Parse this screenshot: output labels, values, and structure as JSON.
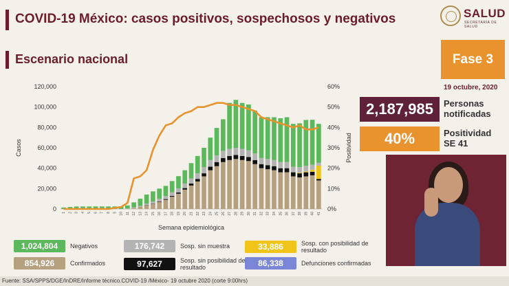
{
  "header": {
    "title": "COVID-19 México: casos positivos, sospechosos y negativos",
    "subtitle": "Escenario nacional"
  },
  "logo": {
    "word": "SALUD",
    "sub": "SECRETARÍA DE SALUD"
  },
  "fase": "Fase 3",
  "date": "19 octubre, 2020",
  "stats": {
    "notificadas_value": "2,187,985",
    "notificadas_label1": "Personas",
    "notificadas_label2": "notificadas",
    "positividad_value": "40%",
    "positividad_label1": "Positividad",
    "positividad_label2": "SE 41"
  },
  "legend": [
    {
      "value": "1,024,804",
      "label": "Negativos",
      "color": "#5cb85c"
    },
    {
      "value": "176,742",
      "label": "Sosp. sin muestra",
      "color": "#b3b3b3"
    },
    {
      "value": "33,886",
      "label": "Sosp. con posibilidad de resultado",
      "color": "#f0c419"
    },
    {
      "value": "854,926",
      "label": "Confirmados",
      "color": "#b5a080"
    },
    {
      "value": "97,627",
      "label": "Sosp. sin posibilidad de resultado",
      "color": "#111111"
    },
    {
      "value": "86,338",
      "label": "Defunciones confirmadas",
      "color": "#7b86d6"
    }
  ],
  "footer": "Fuente: SSA/SPPS/DGE/InDRE/Informe técnico.COVID-19 /México- 19 octubre 2020 (corte 9:00hrs)",
  "chart_data": {
    "type": "bar",
    "xlabel": "Semana epidemiológica",
    "ylabel": "Casos",
    "y2label": "Positividad",
    "ylim": [
      0,
      120000
    ],
    "y2lim": [
      0,
      60
    ],
    "yticks": [
      "0",
      "20,000",
      "40,000",
      "60,000",
      "80,000",
      "100,000",
      "120,000"
    ],
    "y2ticks": [
      "0%",
      "10%",
      "20%",
      "30%",
      "40%",
      "50%",
      "60%"
    ],
    "categories": [
      "1",
      "2",
      "3",
      "4",
      "5",
      "6",
      "7",
      "8",
      "9",
      "10",
      "11",
      "12",
      "13",
      "14",
      "15",
      "16",
      "17",
      "18",
      "19",
      "20",
      "21",
      "22",
      "23",
      "24",
      "25",
      "26",
      "27",
      "28",
      "29",
      "30",
      "31",
      "32",
      "33",
      "34",
      "35",
      "36",
      "37",
      "38",
      "39",
      "40",
      "41"
    ],
    "series": [
      {
        "name": "Confirmados",
        "color": "#b5a080",
        "values": [
          0,
          0,
          0,
          0,
          0,
          0,
          0,
          0,
          0,
          0,
          200,
          800,
          2000,
          3500,
          5000,
          7000,
          9000,
          12000,
          15000,
          19000,
          23000,
          27000,
          32000,
          38000,
          42000,
          46000,
          48000,
          49000,
          48000,
          47000,
          44000,
          40000,
          39000,
          38000,
          36000,
          36000,
          32000,
          31000,
          32000,
          33000,
          28000
        ]
      },
      {
        "name": "Sosp. sin posibilidad de resultado",
        "color": "#111111",
        "values": [
          0,
          0,
          0,
          0,
          0,
          0,
          0,
          0,
          0,
          0,
          0,
          0,
          100,
          200,
          300,
          500,
          700,
          900,
          1200,
          1500,
          2000,
          2500,
          3000,
          3500,
          4000,
          4000,
          4000,
          4000,
          4000,
          4000,
          4000,
          4000,
          4000,
          4000,
          4000,
          4000,
          4000,
          4000,
          4000,
          3500,
          1500
        ]
      },
      {
        "name": "Sosp. con posibilidad de resultado",
        "color": "#f0c419",
        "values": [
          0,
          0,
          0,
          0,
          0,
          0,
          0,
          0,
          0,
          0,
          0,
          0,
          0,
          0,
          0,
          0,
          0,
          0,
          0,
          0,
          0,
          0,
          0,
          0,
          0,
          0,
          0,
          0,
          0,
          0,
          0,
          0,
          0,
          0,
          0,
          0,
          0,
          500,
          800,
          2000,
          13000
        ]
      },
      {
        "name": "Sosp. sin muestra",
        "color": "#b3b3b3",
        "values": [
          0,
          0,
          0,
          0,
          0,
          0,
          0,
          0,
          0,
          0,
          300,
          700,
          1000,
          1500,
          2000,
          2500,
          3000,
          3500,
          4000,
          4500,
          5000,
          5500,
          6000,
          6500,
          6500,
          7000,
          7000,
          7000,
          7000,
          6500,
          6500,
          6000,
          6000,
          6000,
          6000,
          6000,
          5500,
          5500,
          5500,
          5000,
          3000
        ]
      },
      {
        "name": "Negativos",
        "color": "#5cb85c",
        "values": [
          1500,
          2000,
          2500,
          2500,
          2500,
          2500,
          2500,
          2500,
          2500,
          2500,
          3000,
          5000,
          7000,
          9000,
          10000,
          10000,
          10000,
          11000,
          12000,
          13000,
          15000,
          17000,
          19000,
          22000,
          27000,
          31000,
          45000,
          47000,
          45000,
          45000,
          42000,
          40000,
          41000,
          42000,
          43000,
          44000,
          42000,
          43000,
          45000,
          44000,
          38000
        ]
      },
      {
        "name": "Positividad",
        "type": "line",
        "color": "#e8932e",
        "values": [
          0,
          0,
          0,
          0,
          0,
          0,
          0,
          0,
          0.5,
          1,
          3,
          15,
          16,
          19,
          29,
          36,
          41,
          42,
          45,
          47,
          48,
          50,
          50,
          51,
          52,
          52,
          51,
          51,
          50,
          49,
          48,
          45,
          44,
          43,
          42,
          41,
          40,
          41,
          39,
          39,
          40
        ]
      }
    ]
  }
}
